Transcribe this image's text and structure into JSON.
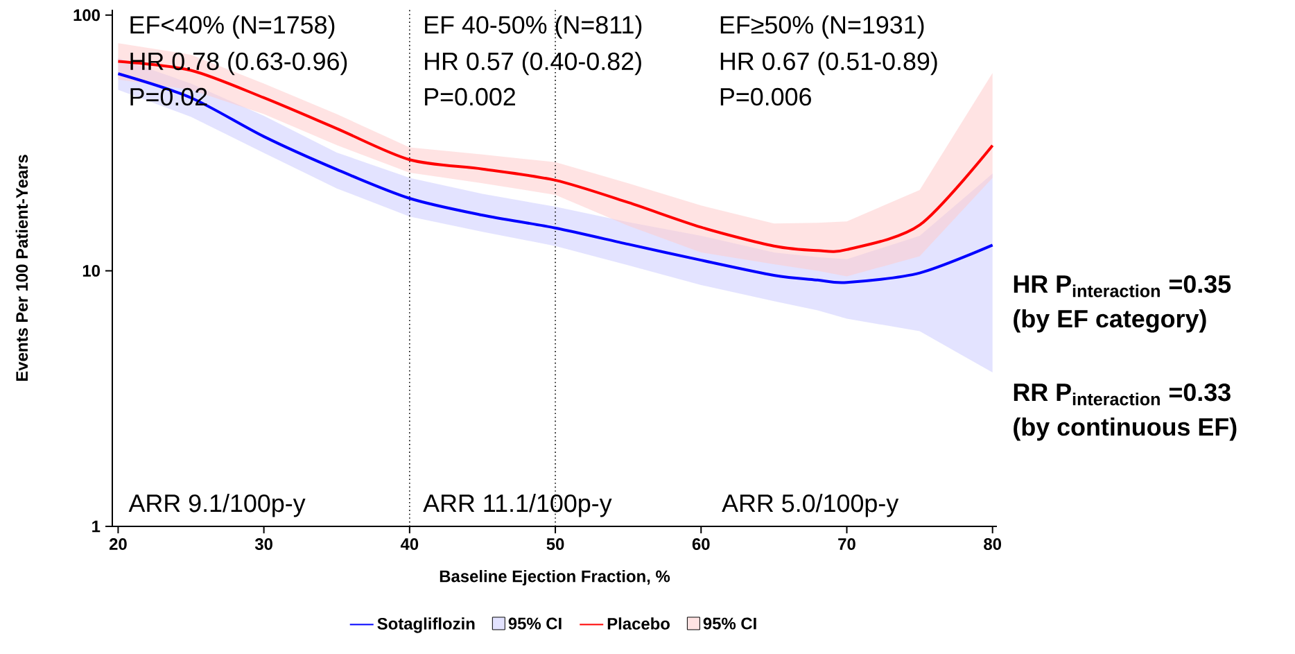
{
  "chart_data": {
    "type": "line",
    "xlabel": "Baseline Ejection Fraction, %",
    "ylabel": "Events Per 100 Patient-Years",
    "log": "y",
    "xlim": [
      19.6,
      80.3
    ],
    "ylim": [
      1,
      105
    ],
    "xticks": [
      20,
      30,
      40,
      50,
      60,
      70,
      80
    ],
    "yticks": [
      1,
      10,
      100
    ],
    "legend": "bottom",
    "grid": false,
    "x": [
      20,
      25,
      30,
      35,
      40,
      45,
      50,
      55,
      60,
      65,
      68,
      70,
      75,
      80
    ],
    "series": [
      {
        "name": "Sotagliflozin",
        "color": "#0000ff",
        "values": [
          59,
          47.5,
          33.5,
          24.9,
          19.2,
          16.5,
          14.7,
          12.7,
          11.0,
          9.6,
          9.2,
          9.0,
          9.8,
          12.6
        ],
        "lower": [
          51,
          40,
          28.9,
          21,
          16.3,
          14.2,
          12.5,
          10.5,
          8.8,
          7.6,
          7.0,
          6.5,
          5.8,
          4.0
        ],
        "upper": [
          68,
          54,
          40.4,
          29,
          23.1,
          20,
          17.8,
          15.5,
          13.7,
          11.8,
          11.3,
          11.1,
          13.7,
          24
        ]
      },
      {
        "name": "Placebo",
        "color": "#ff0000",
        "values": [
          65.9,
          60.8,
          47.5,
          36,
          27.2,
          25,
          22.6,
          18.5,
          14.8,
          12.5,
          12.0,
          12.1,
          15.1,
          30.9
        ],
        "lower": [
          56,
          51,
          41,
          31,
          24.2,
          22,
          19.8,
          15,
          11.8,
          10.6,
          10,
          9.5,
          11.4,
          23.1
        ],
        "upper": [
          77.7,
          70,
          54,
          41,
          30.4,
          28.5,
          26.6,
          22,
          18,
          15.3,
          15.4,
          15.6,
          20.7,
          59.4
        ]
      }
    ],
    "ref_lines": [
      {
        "axis": "x",
        "value": 40,
        "line_style": "dotted",
        "color": "#000000"
      },
      {
        "axis": "x",
        "value": 50,
        "line_style": "dotted",
        "color": "#000000"
      }
    ],
    "annotations": [
      "EF<40% (N=1758)",
      "HR 0.78 (0.63-0.96)",
      "P=0.02",
      "EF 40-50% (N=811)",
      "HR 0.57 (0.40-0.82)",
      "P=0.002",
      "EF≥50% (N=1931)",
      "HR 0.67 (0.51-0.89)",
      "P=0.006",
      "ARR 9.1/100p-y",
      "ARR 11.1/100p-y",
      "ARR 5.0/100p-y",
      "\\text{\\bfseries HR P}_{\\text{\\bfseries interaction}}\\text{\\bfseries\\ =0.35}",
      "(by EF category)",
      "\\text{\\bfseries RR P}_{\\text{\\bfseries interaction}}\\text{\\bfseries\\ =0.33}",
      "(by continuous EF)",
      "95% CI",
      "95% CI"
    ]
  }
}
